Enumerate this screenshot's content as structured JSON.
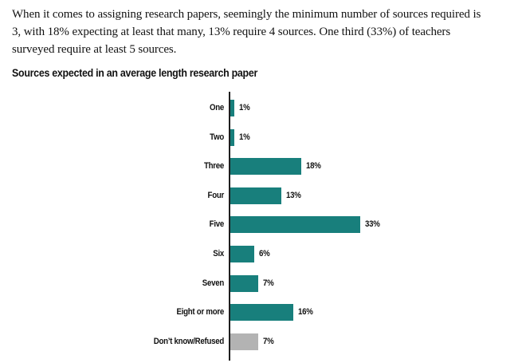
{
  "page": {
    "paragraph_lines": [
      "When it comes to assigning research papers, seemingly the minimum number of sources required is",
      "3, with 18% expecting at least that many, 13% require 4 sources. One third (33%) of teachers",
      "surveyed require at least 5 sources."
    ],
    "chart_title": "Sources expected in an average length research paper"
  },
  "chart_data": {
    "type": "bar",
    "orientation": "horizontal",
    "title": "Sources expected in an average length research paper",
    "categories": [
      "One",
      "Two",
      "Three",
      "Four",
      "Five",
      "Six",
      "Seven",
      "Eight or more",
      "Don’t know/Refused"
    ],
    "values": [
      1,
      1,
      18,
      13,
      33,
      6,
      7,
      16,
      7
    ],
    "value_labels": [
      "1%",
      "1%",
      "18%",
      "13%",
      "33%",
      "6%",
      "7%",
      "16%",
      "7%"
    ],
    "bar_colors": [
      "#187f7c",
      "#187f7c",
      "#187f7c",
      "#187f7c",
      "#187f7c",
      "#187f7c",
      "#187f7c",
      "#187f7c",
      "#b3b3b3"
    ],
    "colors": {
      "bar_teal": "#187f7c",
      "bar_gray": "#b3b3b3",
      "axis": "#1e1e1e",
      "text": "#111111"
    },
    "xlabel": "",
    "ylabel": "",
    "xlim": [
      0,
      35
    ],
    "grid": false,
    "legend": null,
    "value_suffix": "%"
  }
}
